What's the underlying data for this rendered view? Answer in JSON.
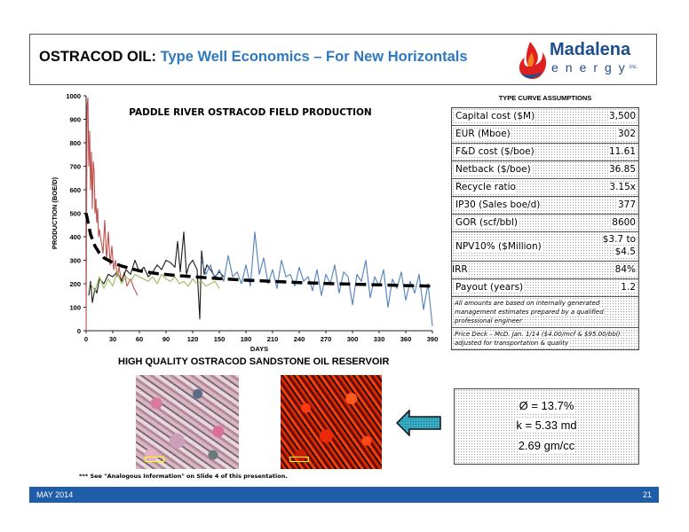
{
  "header": {
    "company": "OSTRACOD OIL:",
    "subtitle": "Type Well Economics – For New Horizontals",
    "logo_name": "Madalena",
    "logo_energy": "energy",
    "logo_inc": "inc.",
    "logo_colors": {
      "flame_red": "#e02020",
      "flame_orange": "#f08020",
      "text": "#1f4e8c"
    }
  },
  "chart_data": {
    "type": "line",
    "title": "PADDLE RIVER OSTRACOD FIELD PRODUCTION",
    "xlabel": "DAYS",
    "ylabel": "PRODUCTION (BOE/D)",
    "xlim": [
      0,
      390
    ],
    "ylim": [
      0,
      1000
    ],
    "x_ticks": [
      0,
      30,
      60,
      90,
      120,
      150,
      180,
      210,
      240,
      270,
      300,
      330,
      360,
      390
    ],
    "y_ticks": [
      0,
      100,
      200,
      300,
      400,
      500,
      600,
      700,
      800,
      900,
      1000
    ],
    "grid": false,
    "series": [
      {
        "color": "#c0504d",
        "x": [
          0,
          1,
          2,
          3,
          4,
          5,
          6,
          7,
          8,
          9,
          10,
          11,
          12,
          13,
          14,
          15,
          17,
          19,
          21,
          23,
          25,
          27,
          29,
          31,
          33,
          35,
          37,
          40,
          43,
          46,
          50,
          54,
          58
        ],
        "y": [
          0,
          950,
          990,
          700,
          850,
          600,
          760,
          520,
          720,
          680,
          500,
          560,
          460,
          520,
          400,
          430,
          380,
          330,
          470,
          300,
          420,
          280,
          360,
          260,
          300,
          230,
          270,
          210,
          250,
          190,
          220,
          180,
          150
        ]
      },
      {
        "color": "#1a1a1a",
        "x": [
          3,
          5,
          7,
          10,
          12,
          15,
          20,
          25,
          30,
          35,
          40,
          45,
          50,
          55,
          60,
          65,
          70,
          75,
          80,
          85,
          90,
          95,
          100,
          103,
          106,
          110,
          113,
          116,
          120,
          125,
          128,
          130,
          133,
          136,
          140,
          145,
          150,
          155
        ],
        "y": [
          150,
          210,
          120,
          180,
          160,
          220,
          200,
          240,
          230,
          250,
          210,
          260,
          240,
          300,
          250,
          270,
          230,
          250,
          280,
          260,
          300,
          290,
          270,
          380,
          250,
          420,
          240,
          280,
          300,
          260,
          50,
          340,
          240,
          280,
          260,
          230,
          250,
          230
        ]
      },
      {
        "color": "#9bbb59",
        "x": [
          5,
          10,
          15,
          20,
          25,
          30,
          35,
          40,
          45,
          50,
          55,
          60,
          65,
          70,
          75,
          80,
          85,
          90,
          95,
          100,
          105,
          110,
          115,
          120,
          125,
          130,
          135,
          140,
          145,
          150
        ],
        "y": [
          200,
          170,
          230,
          180,
          220,
          190,
          250,
          200,
          230,
          210,
          240,
          230,
          220,
          210,
          230,
          200,
          240,
          220,
          210,
          230,
          200,
          210,
          190,
          220,
          200,
          210,
          190,
          200,
          210,
          180
        ]
      },
      {
        "color": "#4f81bd",
        "x": [
          130,
          135,
          140,
          145,
          150,
          155,
          160,
          165,
          170,
          175,
          180,
          185,
          190,
          195,
          200,
          205,
          210,
          215,
          220,
          225,
          230,
          235,
          240,
          245,
          250,
          255,
          260,
          265,
          270,
          275,
          280,
          285,
          290,
          295,
          300,
          305,
          310,
          315,
          320,
          325,
          330,
          335,
          340,
          345,
          350,
          355,
          360,
          365,
          370,
          375,
          380,
          385,
          390
        ],
        "y": [
          300,
          240,
          280,
          220,
          260,
          210,
          320,
          230,
          250,
          200,
          280,
          190,
          420,
          240,
          310,
          200,
          260,
          180,
          300,
          230,
          240,
          190,
          270,
          210,
          230,
          170,
          260,
          150,
          240,
          200,
          280,
          160,
          250,
          230,
          110,
          240,
          210,
          300,
          140,
          230,
          190,
          260,
          100,
          220,
          180,
          250,
          130,
          210,
          160,
          240,
          90,
          200,
          20
        ]
      },
      {
        "name": "",
        "color": "#000000",
        "dashed": true,
        "x": [
          0,
          5,
          10,
          15,
          20,
          30,
          40,
          50,
          60,
          80,
          100,
          120,
          150,
          180,
          210,
          240,
          270,
          300,
          330,
          360,
          390
        ],
        "y": [
          500,
          410,
          360,
          330,
          310,
          290,
          275,
          265,
          255,
          243,
          236,
          230,
          222,
          215,
          210,
          205,
          201,
          198,
          195,
          192,
          190
        ]
      }
    ]
  },
  "assumptions": {
    "title": "TYPE CURVE ASSUMPTIONS",
    "rows": [
      {
        "label": "Capital cost ($M)",
        "value": "3,500"
      },
      {
        "label": "EUR (Mboe)",
        "value": "302"
      },
      {
        "label": "F&D cost ($/boe)",
        "value": "11.61"
      },
      {
        "label": "Netback ($/boe)",
        "value": "36.85"
      },
      {
        "label": "Recycle ratio",
        "value": "3.15x"
      },
      {
        "label": "IP30 (Sales boe/d)",
        "value": "377"
      },
      {
        "label": "GOR (scf/bbl)",
        "value": "8600"
      },
      {
        "label": "NPV10% ($Million)",
        "value": "$3.7 to",
        "value2": "$4.5"
      },
      {
        "label": "IRR",
        "value": "84%"
      },
      {
        "label": "Payout (years)",
        "value": "1.2"
      }
    ],
    "note1": "All amounts are based on internally generated management estimates prepared by a qualified professional engineer",
    "note2": "Price Deck – McD. Jan. 1/14 ($4.00/mcf & $95.00/bbl) adjusted for transportation & quality"
  },
  "reservoir": {
    "title": "HIGH QUALITY OSTRACOD SANDSTONE OIL RESERVOIR",
    "stats": [
      "Ø = 13.7%",
      "k = 5.33 md",
      "2.69 gm/cc"
    ]
  },
  "footnote": "*** See \"Analogous Information\" on Slide 4 of this presentation.",
  "footer": {
    "date": "MAY 2014",
    "page": "21",
    "color": "#1f5da8"
  }
}
